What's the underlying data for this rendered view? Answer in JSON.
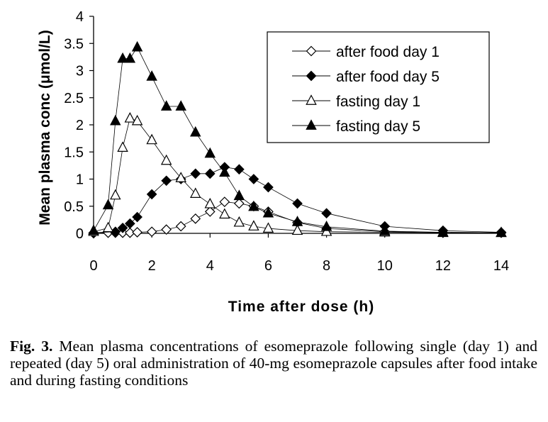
{
  "chart_data": {
    "type": "line",
    "title": "",
    "xlabel": "Time after dose (h)",
    "ylabel": "Mean plasma conc (μmol/L)",
    "xlim": [
      0,
      14
    ],
    "ylim": [
      0,
      4
    ],
    "xticks": [
      0,
      2,
      4,
      6,
      8,
      10,
      12,
      14
    ],
    "yticks": [
      0,
      0.5,
      1,
      1.5,
      2,
      2.5,
      3,
      3.5,
      4
    ],
    "ytick_labels": [
      "0",
      "0.5",
      "1",
      "1.5",
      "2",
      "2.5",
      "3",
      "3.5",
      "4"
    ],
    "grid": false,
    "legend_position": "top-right",
    "series": [
      {
        "name": "after food day 1",
        "marker": "diamond-open",
        "x": [
          0,
          0.5,
          0.75,
          1,
          1.25,
          1.5,
          2,
          2.5,
          3,
          3.5,
          4,
          4.5,
          5,
          5.5,
          6,
          7,
          8,
          10,
          12,
          14
        ],
        "y": [
          0,
          0.01,
          0.01,
          0.01,
          0.01,
          0.02,
          0.03,
          0.07,
          0.13,
          0.27,
          0.4,
          0.58,
          0.55,
          0.5,
          0.4,
          0.2,
          0.09,
          0.03,
          0.01,
          0.01
        ]
      },
      {
        "name": "after food day 5",
        "marker": "diamond-filled",
        "x": [
          0,
          0.75,
          1,
          1.25,
          1.5,
          2,
          2.5,
          3,
          3.5,
          4,
          4.5,
          5,
          5.5,
          6,
          7,
          8,
          10,
          12,
          14
        ],
        "y": [
          0.01,
          0.03,
          0.1,
          0.18,
          0.3,
          0.72,
          0.97,
          1.0,
          1.1,
          1.1,
          1.22,
          1.18,
          1.0,
          0.85,
          0.55,
          0.37,
          0.13,
          0.05,
          0.02
        ]
      },
      {
        "name": "fasting day 1",
        "marker": "triangle-open",
        "x": [
          0,
          0.5,
          0.75,
          1,
          1.25,
          1.5,
          2,
          2.5,
          3,
          3.5,
          4,
          4.5,
          5,
          5.5,
          6,
          7,
          8,
          10,
          12,
          14
        ],
        "y": [
          0.03,
          0.1,
          0.7,
          1.58,
          2.12,
          2.07,
          1.72,
          1.34,
          1.02,
          0.73,
          0.54,
          0.35,
          0.2,
          0.13,
          0.09,
          0.05,
          0.03,
          0.02,
          0.01,
          0.01
        ]
      },
      {
        "name": "fasting day 5",
        "marker": "triangle-filled",
        "x": [
          0,
          0.5,
          0.75,
          1,
          1.25,
          1.5,
          2,
          2.5,
          3,
          3.5,
          4,
          4.5,
          5,
          5.5,
          6,
          7,
          8,
          10,
          12,
          14
        ],
        "y": [
          0.05,
          0.52,
          2.07,
          3.22,
          3.22,
          3.43,
          2.89,
          2.34,
          2.34,
          1.86,
          1.47,
          1.12,
          0.69,
          0.49,
          0.37,
          0.21,
          0.12,
          0.04,
          0.02,
          0.01
        ]
      }
    ]
  },
  "caption": {
    "label": "Fig. 3.",
    "text": "Mean plasma concentrations of esomeprazole following single (day 1) and repeated (day 5) oral administration of 40-mg esomeprazole capsules after food intake and during fasting conditions"
  }
}
